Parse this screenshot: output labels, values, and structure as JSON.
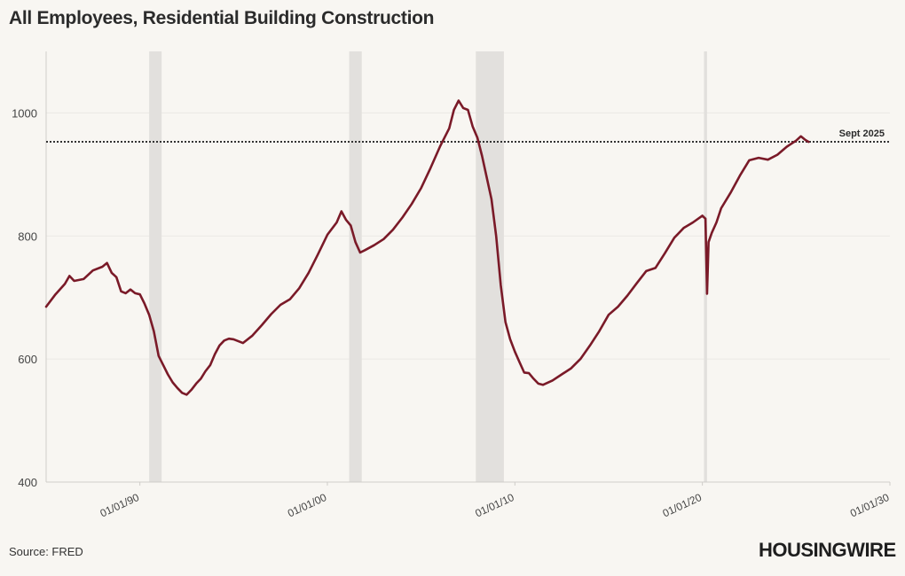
{
  "title": "All Employees, Residential Building Construction",
  "source": "Source: FRED",
  "brand": "HOUSINGWIRE",
  "colors": {
    "line": "#7a1a28",
    "recession": "#e2e0dd",
    "grid": "#ebe9e5",
    "reference": "#333333"
  },
  "chart_data": {
    "type": "line",
    "title": "All Employees, Residential Building Construction",
    "xlabel": "",
    "ylabel": "",
    "xlim": [
      "1985-01-01",
      "2030-01-01"
    ],
    "ylim": [
      400,
      1100
    ],
    "y_ticks": [
      400,
      600,
      800,
      1000
    ],
    "x_ticks": [
      {
        "date": "1990-01-01",
        "label": "01/01/90"
      },
      {
        "date": "2000-01-01",
        "label": "01/01/00"
      },
      {
        "date": "2010-01-01",
        "label": "01/01/10"
      },
      {
        "date": "2020-01-01",
        "label": "01/01/20"
      },
      {
        "date": "2030-01-01",
        "label": "01/01/30"
      }
    ],
    "grid": true,
    "recessions": [
      {
        "start": "1990-07-01",
        "end": "1991-03-01"
      },
      {
        "start": "2001-03-01",
        "end": "2001-11-01"
      },
      {
        "start": "2007-12-01",
        "end": "2009-06-01"
      },
      {
        "start": "2020-02-01",
        "end": "2020-04-01"
      }
    ],
    "reference_line": {
      "value": 953,
      "label": "Sept 2025"
    },
    "series": [
      {
        "points": [
          [
            "1985-01-01",
            685
          ],
          [
            "1985-07-01",
            705
          ],
          [
            "1986-01-01",
            722
          ],
          [
            "1986-04-01",
            735
          ],
          [
            "1986-07-01",
            727
          ],
          [
            "1987-01-01",
            730
          ],
          [
            "1987-07-01",
            744
          ],
          [
            "1988-01-01",
            750
          ],
          [
            "1988-04-01",
            756
          ],
          [
            "1988-07-01",
            740
          ],
          [
            "1988-10-01",
            733
          ],
          [
            "1989-01-01",
            710
          ],
          [
            "1989-04-01",
            707
          ],
          [
            "1989-07-01",
            713
          ],
          [
            "1989-10-01",
            707
          ],
          [
            "1990-01-01",
            705
          ],
          [
            "1990-04-01",
            690
          ],
          [
            "1990-07-01",
            672
          ],
          [
            "1990-10-01",
            645
          ],
          [
            "1991-01-01",
            605
          ],
          [
            "1991-04-01",
            590
          ],
          [
            "1991-07-01",
            575
          ],
          [
            "1991-10-01",
            562
          ],
          [
            "1992-01-01",
            553
          ],
          [
            "1992-04-01",
            545
          ],
          [
            "1992-07-01",
            542
          ],
          [
            "1992-10-01",
            550
          ],
          [
            "1993-01-01",
            560
          ],
          [
            "1993-04-01",
            568
          ],
          [
            "1993-07-01",
            580
          ],
          [
            "1993-10-01",
            590
          ],
          [
            "1994-01-01",
            608
          ],
          [
            "1994-04-01",
            622
          ],
          [
            "1994-07-01",
            630
          ],
          [
            "1994-10-01",
            633
          ],
          [
            "1995-01-01",
            632
          ],
          [
            "1995-07-01",
            626
          ],
          [
            "1996-01-01",
            638
          ],
          [
            "1996-07-01",
            655
          ],
          [
            "1997-01-01",
            673
          ],
          [
            "1997-07-01",
            688
          ],
          [
            "1998-01-01",
            697
          ],
          [
            "1998-07-01",
            715
          ],
          [
            "1999-01-01",
            740
          ],
          [
            "1999-07-01",
            770
          ],
          [
            "2000-01-01",
            802
          ],
          [
            "2000-07-01",
            822
          ],
          [
            "2000-10-01",
            840
          ],
          [
            "2001-01-01",
            826
          ],
          [
            "2001-04-01",
            817
          ],
          [
            "2001-07-01",
            790
          ],
          [
            "2001-10-01",
            773
          ],
          [
            "2002-01-01",
            777
          ],
          [
            "2002-07-01",
            785
          ],
          [
            "2003-01-01",
            795
          ],
          [
            "2003-07-01",
            810
          ],
          [
            "2004-01-01",
            830
          ],
          [
            "2004-07-01",
            852
          ],
          [
            "2005-01-01",
            878
          ],
          [
            "2005-07-01",
            910
          ],
          [
            "2006-01-01",
            945
          ],
          [
            "2006-07-01",
            975
          ],
          [
            "2006-10-01",
            1005
          ],
          [
            "2007-01-01",
            1020
          ],
          [
            "2007-04-01",
            1008
          ],
          [
            "2007-07-01",
            1005
          ],
          [
            "2007-10-01",
            978
          ],
          [
            "2008-01-01",
            960
          ],
          [
            "2008-04-01",
            930
          ],
          [
            "2008-07-01",
            895
          ],
          [
            "2008-10-01",
            860
          ],
          [
            "2009-01-01",
            800
          ],
          [
            "2009-04-01",
            720
          ],
          [
            "2009-07-01",
            660
          ],
          [
            "2009-10-01",
            632
          ],
          [
            "2010-01-01",
            612
          ],
          [
            "2010-04-01",
            595
          ],
          [
            "2010-07-01",
            578
          ],
          [
            "2010-10-01",
            577
          ],
          [
            "2011-01-01",
            568
          ],
          [
            "2011-04-01",
            560
          ],
          [
            "2011-07-01",
            558
          ],
          [
            "2012-01-01",
            565
          ],
          [
            "2012-07-01",
            575
          ],
          [
            "2013-01-01",
            585
          ],
          [
            "2013-07-01",
            600
          ],
          [
            "2014-01-01",
            622
          ],
          [
            "2014-07-01",
            645
          ],
          [
            "2015-01-01",
            672
          ],
          [
            "2015-07-01",
            685
          ],
          [
            "2016-01-01",
            703
          ],
          [
            "2016-07-01",
            723
          ],
          [
            "2017-01-01",
            743
          ],
          [
            "2017-07-01",
            748
          ],
          [
            "2018-01-01",
            772
          ],
          [
            "2018-07-01",
            797
          ],
          [
            "2019-01-01",
            813
          ],
          [
            "2019-07-01",
            822
          ],
          [
            "2020-01-01",
            833
          ],
          [
            "2020-03-01",
            828
          ],
          [
            "2020-04-01",
            706
          ],
          [
            "2020-05-01",
            790
          ],
          [
            "2020-07-01",
            805
          ],
          [
            "2020-10-01",
            822
          ],
          [
            "2021-01-01",
            845
          ],
          [
            "2021-07-01",
            870
          ],
          [
            "2022-01-01",
            898
          ],
          [
            "2022-07-01",
            923
          ],
          [
            "2023-01-01",
            927
          ],
          [
            "2023-07-01",
            924
          ],
          [
            "2024-01-01",
            932
          ],
          [
            "2024-07-01",
            945
          ],
          [
            "2025-01-01",
            955
          ],
          [
            "2025-04-01",
            962
          ],
          [
            "2025-07-01",
            956
          ],
          [
            "2025-09-01",
            953
          ]
        ]
      }
    ]
  }
}
